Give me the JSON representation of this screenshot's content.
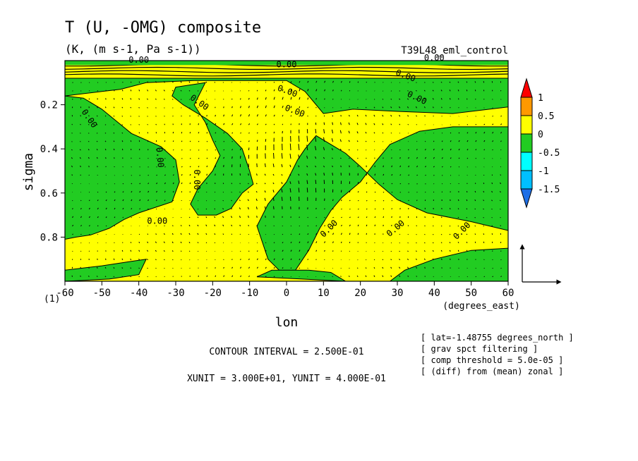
{
  "chart_data": {
    "type": "heatmap",
    "title": "T (U, -OMG) composite",
    "subtitle": "(K, (m s-1, Pa s-1))",
    "experiment": "T39L48_eml_control",
    "xlabel": "lon",
    "x_units_label": "(degrees_east)",
    "ylabel": "sigma",
    "xlim": [
      -60,
      60
    ],
    "ylim": [
      1.0,
      0.0
    ],
    "x_ticks": [
      -60,
      -50,
      -40,
      -30,
      -20,
      -10,
      0,
      10,
      20,
      30,
      40,
      50,
      60
    ],
    "x_tick_labels": [
      "-60",
      "-50",
      "-40",
      "-30",
      "-20",
      "-10",
      "0",
      "10",
      "20",
      "30",
      "40",
      "50",
      "60"
    ],
    "y_ticks": [
      0.2,
      0.4,
      0.6,
      0.8
    ],
    "y_tick_labels": [
      "0.2",
      "0.4",
      "0.6",
      "0.8"
    ],
    "corner_label": "(1)",
    "colorbar": {
      "levels": [
        -1.5,
        -1,
        -0.5,
        0,
        0.5,
        1
      ],
      "labels": [
        "1",
        "0.5",
        "0",
        "-0.5",
        "-1",
        "-1.5"
      ],
      "colors": [
        "#1e6fe6",
        "#00bfff",
        "#00ffff",
        "#22cc22",
        "#ffff00",
        "#ff9900",
        "#ff0000"
      ]
    },
    "contour_labels": [
      "0.00"
    ],
    "contour_interval": "CONTOUR INTERVAL = 2.500E-01",
    "vector_units": "XUNIT = 3.000E+01, YUNIT = 4.000E-01",
    "annotations": [
      "[ lat=-1.48755 degrees_north ]",
      "[ grav spct filtering ]",
      "[ comp threshold = 5.0e-05 ]",
      "[ (diff) from (mean) zonal ]"
    ],
    "fill_colors": {
      "positive": "#ffff00",
      "negative": "#22cc22"
    },
    "green_regions": [
      {
        "name": "upper-band",
        "points": [
          [
            -60,
            0.08
          ],
          [
            60,
            0.08
          ],
          [
            60,
            0.21
          ],
          [
            45,
            0.24
          ],
          [
            30,
            0.23
          ],
          [
            18,
            0.22
          ],
          [
            10,
            0.24
          ],
          [
            5,
            0.14
          ],
          [
            0,
            0.09
          ],
          [
            -10,
            0.09
          ],
          [
            -25,
            0.09
          ],
          [
            -38,
            0.1
          ],
          [
            -45,
            0.13
          ],
          [
            -50,
            0.14
          ],
          [
            -55,
            0.15
          ],
          [
            -60,
            0.16
          ]
        ]
      },
      {
        "name": "right-tongue",
        "points": [
          [
            60,
            0.21
          ],
          [
            60,
            0.77
          ],
          [
            50,
            0.73
          ],
          [
            38,
            0.69
          ],
          [
            30,
            0.63
          ],
          [
            25,
            0.56
          ],
          [
            20,
            0.48
          ],
          [
            16,
            0.42
          ],
          [
            12,
            0.38
          ],
          [
            8,
            0.34
          ],
          [
            5,
            0.4
          ],
          [
            3,
            0.45
          ],
          [
            0,
            0.55
          ],
          [
            -5,
            0.65
          ],
          [
            -8,
            0.75
          ],
          [
            -5,
            0.9
          ],
          [
            -2,
            0.95
          ],
          [
            2,
            0.96
          ],
          [
            6,
            0.86
          ],
          [
            9,
            0.76
          ],
          [
            12,
            0.68
          ],
          [
            15,
            0.62
          ],
          [
            20,
            0.55
          ],
          [
            24,
            0.46
          ],
          [
            28,
            0.38
          ],
          [
            36,
            0.32
          ],
          [
            45,
            0.3
          ],
          [
            55,
            0.3
          ],
          [
            60,
            0.3
          ]
        ]
      },
      {
        "name": "left-blob",
        "points": [
          [
            -60,
            0.16
          ],
          [
            -55,
            0.17
          ],
          [
            -50,
            0.22
          ],
          [
            -42,
            0.33
          ],
          [
            -34,
            0.39
          ],
          [
            -30,
            0.45
          ],
          [
            -29,
            0.55
          ],
          [
            -31,
            0.64
          ],
          [
            -40,
            0.69
          ],
          [
            -44,
            0.72
          ],
          [
            -48,
            0.76
          ],
          [
            -53,
            0.79
          ],
          [
            -57,
            0.8
          ],
          [
            -60,
            0.81
          ]
        ]
      },
      {
        "name": "center-tongue",
        "points": [
          [
            -22,
            0.1
          ],
          [
            -30,
            0.12
          ],
          [
            -31,
            0.16
          ],
          [
            -28,
            0.2
          ],
          [
            -22,
            0.26
          ],
          [
            -16,
            0.33
          ],
          [
            -12,
            0.4
          ],
          [
            -10,
            0.5
          ],
          [
            -9,
            0.56
          ],
          [
            -12,
            0.6
          ],
          [
            -15,
            0.67
          ],
          [
            -19,
            0.7
          ],
          [
            -24,
            0.7
          ],
          [
            -26,
            0.65
          ],
          [
            -24,
            0.58
          ],
          [
            -20,
            0.5
          ],
          [
            -18,
            0.43
          ],
          [
            -20,
            0.36
          ],
          [
            -22,
            0.28
          ],
          [
            -25,
            0.2
          ]
        ]
      },
      {
        "name": "lower-left",
        "points": [
          [
            -60,
            0.95
          ],
          [
            -50,
            0.93
          ],
          [
            -42,
            0.91
          ],
          [
            -38,
            0.9
          ],
          [
            -40,
            0.97
          ],
          [
            -48,
            0.99
          ],
          [
            -60,
            1.0
          ]
        ]
      },
      {
        "name": "lower-right",
        "points": [
          [
            28,
            1.0
          ],
          [
            32,
            0.95
          ],
          [
            40,
            0.9
          ],
          [
            50,
            0.86
          ],
          [
            60,
            0.85
          ],
          [
            60,
            1.0
          ]
        ]
      },
      {
        "name": "bottom-lens",
        "points": [
          [
            -8,
            0.98
          ],
          [
            -4,
            0.95
          ],
          [
            6,
            0.95
          ],
          [
            12,
            0.96
          ],
          [
            16,
            1.0
          ]
        ]
      }
    ]
  }
}
